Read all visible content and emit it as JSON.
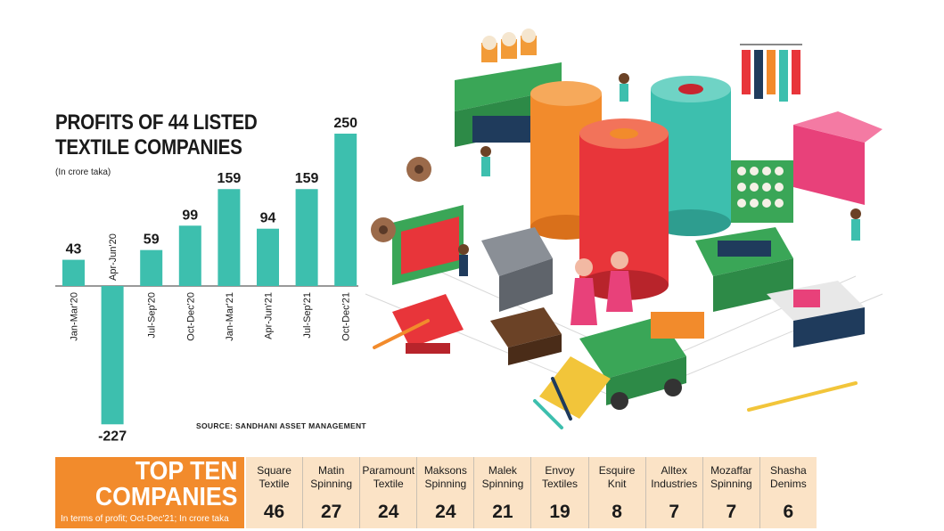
{
  "chart_data": {
    "type": "bar",
    "title": "PROFITS OF 44 LISTED TEXTILE COMPANIES",
    "subtitle": "(In crore taka)",
    "categories": [
      "Jan-Mar'20",
      "Apr-Jun'20",
      "Jul-Sep'20",
      "Oct-Dec'20",
      "Jan-Mar'21",
      "Apr-Jun'21",
      "Jul-Sep'21",
      "Oct-Dec'21"
    ],
    "values": [
      43,
      -227,
      59,
      99,
      159,
      94,
      159,
      250
    ],
    "value_labels": [
      "43",
      "-227",
      "59",
      "99",
      "159",
      "94",
      "159",
      "250"
    ],
    "ylim": [
      -227,
      250
    ],
    "grid": false,
    "colors": {
      "bar": "#3dbfae"
    }
  },
  "source": "SOURCE: SANDHANI ASSET MANAGEMENT",
  "top_ten": {
    "heading_line1": "TOP TEN",
    "heading_line2": "COMPANIES",
    "subheading": "In terms of profit; Oct-Dec'21; In crore taka",
    "companies": [
      {
        "name_line1": "Square",
        "name_line2": "Textile",
        "value": "46"
      },
      {
        "name_line1": "Matin",
        "name_line2": "Spinning",
        "value": "27"
      },
      {
        "name_line1": "Paramount",
        "name_line2": "Textile",
        "value": "24"
      },
      {
        "name_line1": "Maksons",
        "name_line2": "Spinning",
        "value": "24"
      },
      {
        "name_line1": "Malek",
        "name_line2": "Spinning",
        "value": "21"
      },
      {
        "name_line1": "Envoy",
        "name_line2": "Textiles",
        "value": "19"
      },
      {
        "name_line1": "Esquire",
        "name_line2": "Knit",
        "value": "8"
      },
      {
        "name_line1": "Alltex",
        "name_line2": "Industries",
        "value": "7"
      },
      {
        "name_line1": "Mozaffar",
        "name_line2": "Spinning",
        "value": "7"
      },
      {
        "name_line1": "Shasha",
        "name_line2": "Denims",
        "value": "6"
      }
    ],
    "colors": {
      "heading_bg": "#f28b2c",
      "list_bg": "#fbe3c6"
    }
  }
}
